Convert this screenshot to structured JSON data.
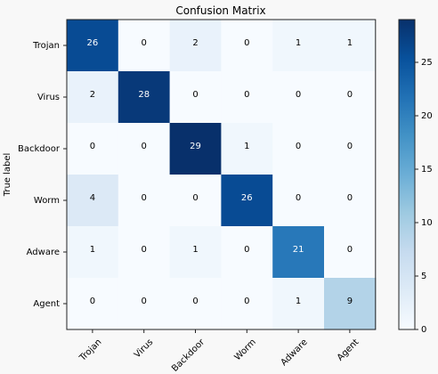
{
  "chart_data": {
    "type": "heatmap",
    "title": "Confusion Matrix",
    "ylabel": "True label",
    "xlabel": "",
    "x_categories": [
      "Trojan",
      "Virus",
      "Backdoor",
      "Worm",
      "Adware",
      "Agent"
    ],
    "y_categories": [
      "Trojan",
      "Virus",
      "Backdoor",
      "Worm",
      "Adware",
      "Agent"
    ],
    "matrix": [
      [
        26,
        0,
        2,
        0,
        1,
        1
      ],
      [
        2,
        28,
        0,
        0,
        0,
        0
      ],
      [
        0,
        0,
        29,
        1,
        0,
        0
      ],
      [
        4,
        0,
        0,
        26,
        0,
        0
      ],
      [
        1,
        0,
        1,
        0,
        21,
        0
      ],
      [
        0,
        0,
        0,
        0,
        1,
        9
      ]
    ],
    "colorbar": {
      "min": 0,
      "max": 29,
      "ticks": [
        0,
        5,
        10,
        15,
        20,
        25
      ],
      "colormap": "Blues"
    }
  }
}
